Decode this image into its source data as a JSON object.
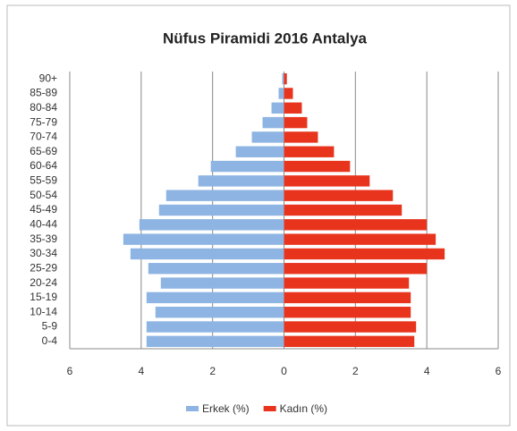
{
  "chart_data": {
    "type": "pyramid",
    "title": "Nüfus Piramidi  2016 Antalya",
    "categories": [
      "0-4",
      "5-9",
      "10-14",
      "15-19",
      "20-24",
      "25-29",
      "30-34",
      "35-39",
      "40-44",
      "45-49",
      "50-54",
      "55-59",
      "60-64",
      "65-69",
      "70-74",
      "75-79",
      "80-84",
      "85-89",
      "90+"
    ],
    "series": [
      {
        "name": "Erkek (%)",
        "color": "#8db4e2",
        "values": [
          -3.85,
          -3.85,
          -3.6,
          -3.85,
          -3.45,
          -3.8,
          -4.3,
          -4.5,
          -4.05,
          -3.5,
          -3.3,
          -2.4,
          -2.05,
          -1.35,
          -0.9,
          -0.6,
          -0.35,
          -0.15,
          -0.05
        ]
      },
      {
        "name": "Kadın (%)",
        "color": "#e8341c",
        "values": [
          3.65,
          3.7,
          3.55,
          3.55,
          3.5,
          4.0,
          4.5,
          4.25,
          4.0,
          3.3,
          3.05,
          2.4,
          1.85,
          1.4,
          0.95,
          0.65,
          0.5,
          0.25,
          0.08
        ]
      }
    ],
    "xlim": [
      -6,
      6
    ],
    "xticks": [
      {
        "value": -6,
        "label": "6"
      },
      {
        "value": -4,
        "label": "4"
      },
      {
        "value": -2,
        "label": "2"
      },
      0,
      2,
      4,
      6
    ],
    "grid": true,
    "legend": "bottom"
  }
}
